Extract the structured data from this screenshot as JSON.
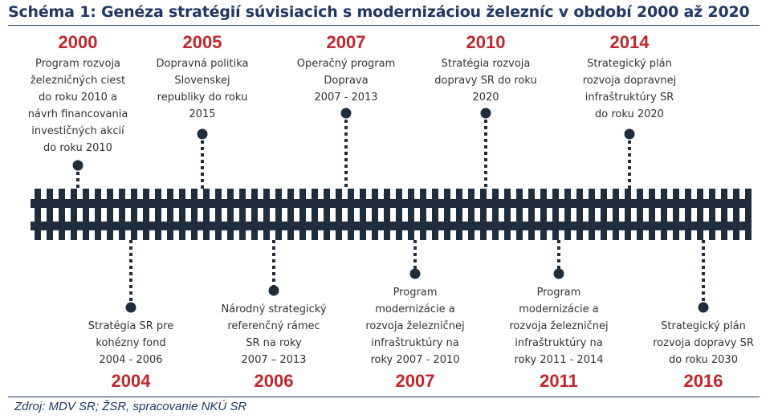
{
  "title": "Schéma 1: Genéza stratégií súvisiacich s modernizáciou železníc v období 2000 až 2020",
  "source": "Zdroj: MDV SR; ŽSR, spracovanie NKÚ SR",
  "colors": {
    "title": "#1f3864",
    "year": "#c0272d",
    "text": "#333333",
    "rail": "#1f2d3d"
  },
  "top_events": [
    {
      "year": "2000",
      "lines": [
        "Program rozvoja",
        "železničných ciest",
        "do roku 2010 a",
        "návrh financovania",
        "investičných akcií",
        "do roku 2010"
      ]
    },
    {
      "year": "2005",
      "lines": [
        "Dopravná politika",
        "Slovenskej",
        "republiky do roku",
        "2015"
      ]
    },
    {
      "year": "2007",
      "lines": [
        "Operačný program",
        "Doprava",
        "2007 - 2013"
      ]
    },
    {
      "year": "2010",
      "lines": [
        "Stratégia rozvoja",
        "dopravy SR do roku",
        "2020"
      ]
    },
    {
      "year": "2014",
      "lines": [
        "Strategický plán",
        "rozvoja dopravnej",
        "infraštruktúry SR",
        "do roku 2020"
      ]
    }
  ],
  "bottom_events": [
    {
      "year": "2004",
      "lines": [
        "Stratégia SR pre",
        "kohézny fond",
        "2004 - 2006"
      ]
    },
    {
      "year": "2006",
      "lines": [
        "Národný strategický",
        "referenčný rámec",
        "SR na roky",
        "2007 – 2013"
      ]
    },
    {
      "year": "2007",
      "lines": [
        "Program",
        "modernizácie a",
        "rozvoja železničnej",
        "infraštruktúry na",
        "roky 2007 - 2010"
      ]
    },
    {
      "year": "2011",
      "lines": [
        "Program",
        "modernizácie a",
        "rozvoja železničnej",
        "infraštruktúry na",
        "roky 2011 - 2014"
      ]
    },
    {
      "year": "2016",
      "lines": [
        "Strategický plán",
        "rozvoja dopravy SR",
        "do roku 2030"
      ]
    }
  ]
}
